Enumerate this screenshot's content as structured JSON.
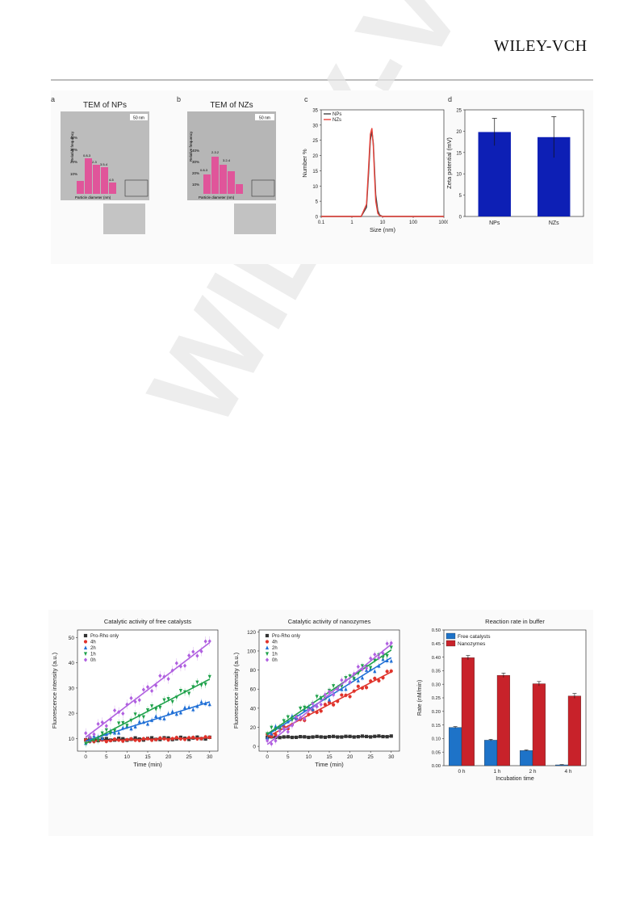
{
  "header": {
    "logo": "WILEY-VCH"
  },
  "watermark": {
    "text": "WILEY-VCH"
  },
  "figure1": {
    "panel_labels": [
      "a",
      "b",
      "c",
      "d"
    ],
    "a": {
      "title": "TEM of NPs",
      "scale": "50 nm",
      "ylabel": "Relative frequency",
      "xlabel": "Particle diameter (nm)",
      "yticks": [
        "40%",
        "30%",
        "20%",
        "10%"
      ],
      "bar_labels": [
        "0.8-3",
        "2-3",
        "3.5-4",
        "4-5"
      ]
    },
    "b": {
      "title": "TEM of NZs",
      "scale": "50 nm",
      "ylabel": "Relative frequency",
      "xlabel": "Particle diameter (nm)",
      "yticks": [
        "40%",
        "30%",
        "20%",
        "10%"
      ],
      "bar_labels": [
        "0.8-3",
        "2-3.2",
        "3.2-4"
      ]
    }
  },
  "chart_data": [
    {
      "id": "c",
      "type": "line",
      "xscale": "log",
      "xlim": [
        0.1,
        1000
      ],
      "ylim": [
        0,
        35
      ],
      "xticks": [
        "0.1",
        "1",
        "10",
        "100",
        "1000"
      ],
      "yticks": [
        "0",
        "5",
        "10",
        "15",
        "20",
        "25",
        "30",
        "35"
      ],
      "xlabel": "Size (nm)",
      "ylabel": "Number %",
      "legend": "top-left",
      "series": [
        {
          "name": "NPs",
          "color": "#444444",
          "x": [
            2,
            3,
            3.5,
            4,
            4.5,
            5,
            5.5,
            6,
            7,
            8,
            10
          ],
          "y": [
            0,
            3,
            14,
            25,
            28,
            24,
            15,
            7,
            2,
            0.5,
            0
          ]
        },
        {
          "name": "NZs",
          "color": "#e8423a",
          "x": [
            2,
            3,
            3.5,
            4,
            4.5,
            5,
            5.5,
            6,
            7,
            8,
            10
          ],
          "y": [
            0,
            4,
            16,
            27,
            29,
            23,
            13,
            5,
            1,
            0.3,
            0
          ]
        }
      ]
    },
    {
      "id": "d",
      "type": "bar",
      "categories": [
        "NPs",
        "NZs"
      ],
      "values": [
        19.8,
        18.6
      ],
      "errors": [
        3.2,
        4.8
      ],
      "ylim": [
        0,
        25
      ],
      "yticks": [
        "0",
        "5",
        "10",
        "15",
        "20",
        "25"
      ],
      "ylabel": "Zeta potential (mV)",
      "color": "#0d1fb5"
    },
    {
      "id": "a2",
      "type": "scatter",
      "title": "Catalytic activity of free catalysts",
      "xlabel": "Time (min)",
      "ylabel": "Fluorescence intensity (a.u.)",
      "xlim": [
        -2,
        32
      ],
      "ylim": [
        5,
        53
      ],
      "xticks": [
        "0",
        "5",
        "10",
        "15",
        "20",
        "25",
        "30"
      ],
      "yticks": [
        "10",
        "20",
        "30",
        "40",
        "50"
      ],
      "legend": "top-left",
      "series": [
        {
          "name": "Pro-Rho only",
          "color": "#333333",
          "marker": "square",
          "start": 9.5,
          "end": 10.2
        },
        {
          "name": "4h",
          "color": "#e0332b",
          "marker": "circle",
          "start": 9.0,
          "end": 10.3
        },
        {
          "name": "2h",
          "color": "#1f6fd6",
          "marker": "triangle",
          "start": 9.0,
          "end": 24.5
        },
        {
          "name": "1h",
          "color": "#1ea14a",
          "marker": "tri-down",
          "start": 8.0,
          "end": 33.5
        },
        {
          "name": "0h",
          "color": "#b060e0",
          "marker": "diamond",
          "start": 10.5,
          "end": 48.0
        }
      ]
    },
    {
      "id": "b2",
      "type": "scatter",
      "title": "Catalytic activity of nanozymes",
      "xlabel": "Time (min)",
      "ylabel": "Fluorescence intensity (a.u.)",
      "xlim": [
        -2,
        32
      ],
      "ylim": [
        -5,
        122
      ],
      "xticks": [
        "0",
        "5",
        "10",
        "15",
        "20",
        "25",
        "30"
      ],
      "yticks": [
        "0",
        "20",
        "40",
        "60",
        "80",
        "100",
        "120"
      ],
      "legend": "top-left",
      "series": [
        {
          "name": "Pro-Rho only",
          "color": "#333333",
          "marker": "square",
          "start": 9.5,
          "end": 10.5
        },
        {
          "name": "4h",
          "color": "#e0332b",
          "marker": "circle",
          "start": 10.0,
          "end": 78.0
        },
        {
          "name": "2h",
          "color": "#1f6fd6",
          "marker": "triangle",
          "start": 12.0,
          "end": 93.0
        },
        {
          "name": "1h",
          "color": "#1ea14a",
          "marker": "tri-down",
          "start": 13.0,
          "end": 101.0
        },
        {
          "name": "0h",
          "color": "#b060e0",
          "marker": "diamond",
          "start": 2.0,
          "end": 107.0
        }
      ]
    },
    {
      "id": "c2",
      "type": "bar",
      "title": "Reaction rate in buffer",
      "categories": [
        "0 h",
        "1 h",
        "2 h",
        "4 h"
      ],
      "xlabel": "Incubation time",
      "ylabel": "Rate (nM/min)",
      "ylim": [
        0,
        0.5
      ],
      "yticks": [
        "0.00",
        "0.05",
        "0.10",
        "0.15",
        "0.20",
        "0.25",
        "0.30",
        "0.35",
        "0.40",
        "0.45",
        "0.50"
      ],
      "legend": "top-left",
      "series": [
        {
          "name": "Free catalysts",
          "color": "#1e73c8",
          "values": [
            0.141,
            0.094,
            0.056,
            0.003
          ],
          "errors": [
            0.003,
            0.003,
            0.002,
            0.001
          ]
        },
        {
          "name": "Nanozymes",
          "color": "#c8222a",
          "values": [
            0.398,
            0.333,
            0.302,
            0.257
          ],
          "errors": [
            0.008,
            0.008,
            0.008,
            0.009
          ]
        }
      ]
    }
  ]
}
